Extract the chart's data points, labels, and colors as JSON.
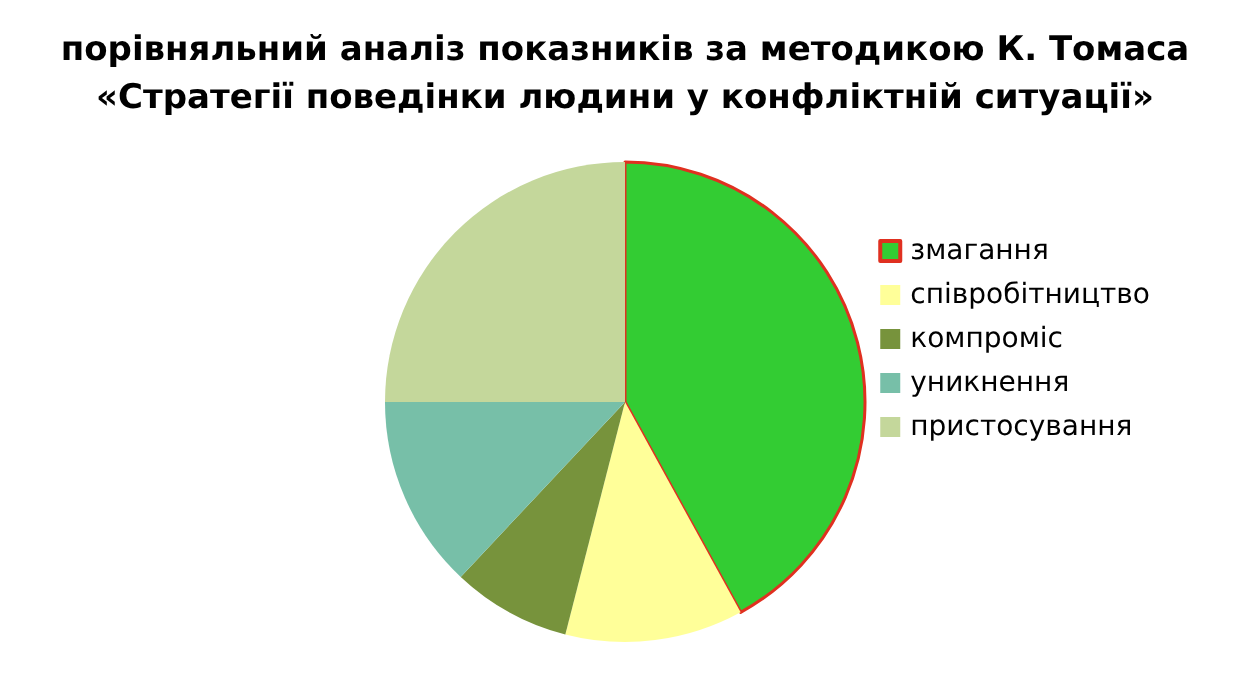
{
  "chart_data": {
    "type": "pie",
    "title": "порівняльний аналіз показників за методикою К. Томаса\n«Стратегії поведінки людини у конфліктній ситуації»",
    "categories": [
      "змагання",
      "співробітництво",
      "компроміс",
      "уникнення",
      "пристосування"
    ],
    "values": [
      42,
      12,
      8,
      13,
      25
    ],
    "colors": [
      "#33cc33",
      "#ffff99",
      "#77933c",
      "#77bfa8",
      "#c4d79b"
    ],
    "legend": "right"
  }
}
